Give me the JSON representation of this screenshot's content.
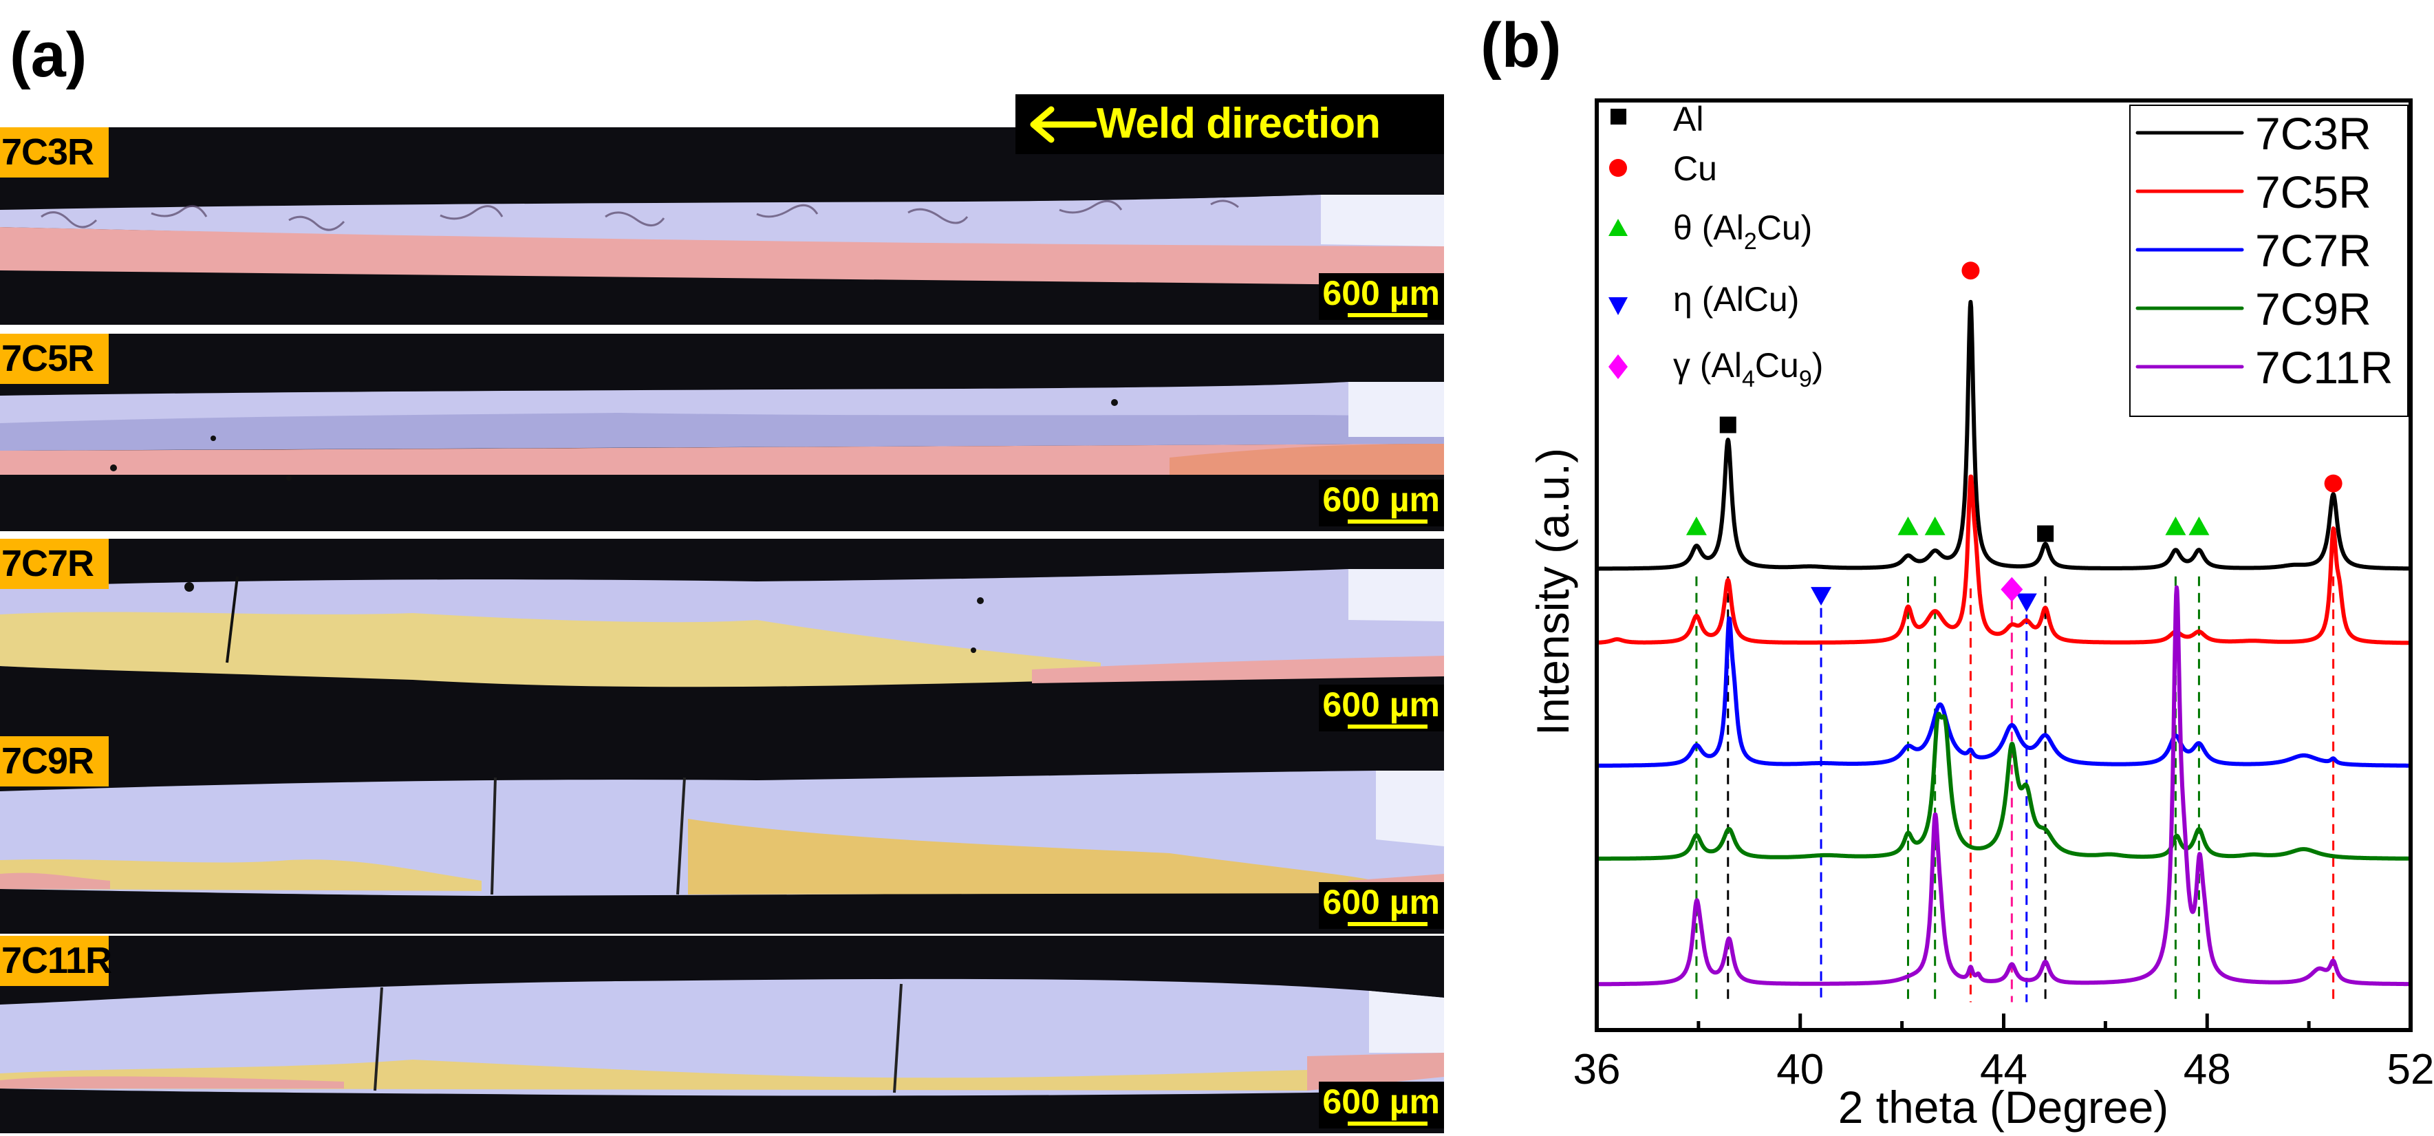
{
  "figure": {
    "panel_a_label": "(a)",
    "panel_b_label": "(b)"
  },
  "micrographs": {
    "weld_direction_label": "Weld direction",
    "weld_arrow_icon": "arrow-left-icon",
    "samples": [
      {
        "label": "7C3R",
        "scale_bar": "600 µm",
        "layers": "Al over Cu"
      },
      {
        "label": "7C5R",
        "scale_bar": "600 µm",
        "layers": "Al over Cu"
      },
      {
        "label": "7C7R",
        "scale_bar": "600 µm",
        "layers": "Al over intermetallic"
      },
      {
        "label": "7C9R",
        "scale_bar": "600 µm",
        "layers": "Al with intermetallic"
      },
      {
        "label": "7C11R",
        "scale_bar": "600 µm",
        "layers": "Al with intermetallic"
      }
    ],
    "colors": {
      "tag": "#ffb400",
      "scale_text": "#ffff00",
      "al": "#c8c8ee",
      "cu": "#e8a0a0",
      "imc": "#e8d07a",
      "background": "#0d0d12"
    }
  },
  "chart_data": {
    "type": "line",
    "title": "",
    "xlabel": "2 theta (Degree)",
    "ylabel": "Intensity (a.u.)",
    "xlim": [
      36,
      52
    ],
    "ylim": [
      0,
      100
    ],
    "x_ticks": [
      36,
      40,
      44,
      48,
      52
    ],
    "x_minor_ticks": [
      38,
      42,
      46,
      50
    ],
    "y_ticks_shown": false,
    "grid": false,
    "legend_position": "top-right",
    "series": [
      {
        "name": "7C3R",
        "color": "#000000",
        "baseline": 49.6,
        "peaks": [
          [
            37.96,
            2.2,
            0.12
          ],
          [
            38.58,
            13.8,
            0.09
          ],
          [
            42.12,
            1.2,
            0.14
          ],
          [
            42.65,
            1.6,
            0.16
          ],
          [
            43.35,
            28.6,
            0.07
          ],
          [
            44.82,
            2.6,
            0.1
          ],
          [
            47.38,
            1.9,
            0.12
          ],
          [
            47.84,
            1.9,
            0.12
          ],
          [
            50.48,
            8.0,
            0.1
          ],
          [
            49.7,
            0.3,
            0.3
          ],
          [
            40.2,
            0.2,
            0.4
          ]
        ]
      },
      {
        "name": "7C5R",
        "color": "#ff0000",
        "baseline": 41.6,
        "peaks": [
          [
            36.4,
            0.4,
            0.15
          ],
          [
            37.96,
            2.8,
            0.12
          ],
          [
            38.58,
            6.7,
            0.09
          ],
          [
            42.12,
            3.4,
            0.1
          ],
          [
            42.65,
            3.1,
            0.22
          ],
          [
            43.35,
            15.2,
            0.07
          ],
          [
            43.45,
            6.0,
            0.08
          ],
          [
            44.16,
            1.3,
            0.15
          ],
          [
            44.45,
            1.8,
            0.15
          ],
          [
            44.82,
            3.4,
            0.1
          ],
          [
            47.38,
            1.1,
            0.15
          ],
          [
            47.84,
            1.1,
            0.15
          ],
          [
            50.48,
            11.1,
            0.07
          ],
          [
            50.6,
            4.0,
            0.08
          ],
          [
            48.9,
            0.2,
            0.4
          ]
        ]
      },
      {
        "name": "7C7R",
        "color": "#0000ff",
        "baseline": 28.4,
        "peaks": [
          [
            37.96,
            2.0,
            0.14
          ],
          [
            38.6,
            13.8,
            0.07
          ],
          [
            38.7,
            5.0,
            0.08
          ],
          [
            42.12,
            1.5,
            0.16
          ],
          [
            42.75,
            6.4,
            0.2
          ],
          [
            43.35,
            0.8,
            0.06
          ],
          [
            44.16,
            4.0,
            0.2
          ],
          [
            44.82,
            2.9,
            0.2
          ],
          [
            47.38,
            3.0,
            0.15
          ],
          [
            47.84,
            2.1,
            0.15
          ],
          [
            49.9,
            1.1,
            0.35
          ],
          [
            50.48,
            0.5,
            0.06
          ],
          [
            40.4,
            0.2,
            0.5
          ]
        ]
      },
      {
        "name": "7C9R",
        "color": "#007800",
        "baseline": 18.4,
        "peaks": [
          [
            37.96,
            2.4,
            0.12
          ],
          [
            38.6,
            3.1,
            0.14
          ],
          [
            42.12,
            2.1,
            0.1
          ],
          [
            42.7,
            10.5,
            0.1
          ],
          [
            42.85,
            11.5,
            0.12
          ],
          [
            44.16,
            11.0,
            0.13
          ],
          [
            44.45,
            5.5,
            0.14
          ],
          [
            44.82,
            2.0,
            0.2
          ],
          [
            47.4,
            2.2,
            0.1
          ],
          [
            47.84,
            3.0,
            0.12
          ],
          [
            49.9,
            1.0,
            0.35
          ],
          [
            48.9,
            0.3,
            0.3
          ],
          [
            46.1,
            0.3,
            0.3
          ],
          [
            40.5,
            0.3,
            0.5
          ]
        ]
      },
      {
        "name": "7C11R",
        "color": "#9900cc",
        "baseline": 4.9,
        "peaks": [
          [
            37.96,
            7.5,
            0.09
          ],
          [
            38.05,
            2.5,
            0.1
          ],
          [
            38.6,
            4.7,
            0.1
          ],
          [
            42.65,
            15.6,
            0.08
          ],
          [
            42.75,
            5.0,
            0.1
          ],
          [
            43.35,
            1.4,
            0.05
          ],
          [
            43.5,
            0.7,
            0.05
          ],
          [
            44.16,
            2.0,
            0.1
          ],
          [
            44.82,
            2.3,
            0.1
          ],
          [
            47.4,
            39.8,
            0.08
          ],
          [
            47.55,
            8.0,
            0.1
          ],
          [
            47.85,
            10.0,
            0.08
          ],
          [
            47.95,
            4.0,
            0.1
          ],
          [
            50.2,
            1.5,
            0.2
          ],
          [
            50.48,
            2.0,
            0.08
          ],
          [
            42.2,
            0.4,
            0.3
          ]
        ]
      }
    ],
    "phase_legend": [
      {
        "name": "Al",
        "marker": "square",
        "color": "#000000"
      },
      {
        "name": "Cu",
        "marker": "circle",
        "color": "#ff0000"
      },
      {
        "name": "θ (Al",
        "sub1": "2",
        "name_tail": "Cu)",
        "marker": "triangle-up",
        "color": "#00d000"
      },
      {
        "name": "η (AlCu)",
        "marker": "triangle-down",
        "color": "#0000ff"
      },
      {
        "name": "γ (Al",
        "sub1": "4",
        "mid": "Cu",
        "sub2": "9",
        "name_tail": ")",
        "marker": "diamond",
        "color": "#ff00ff"
      }
    ],
    "phase_markers": [
      {
        "phase": "Al",
        "x": 38.58,
        "y": 65.1
      },
      {
        "phase": "Al",
        "x": 44.82,
        "y": 53.4
      },
      {
        "phase": "Cu",
        "x": 43.35,
        "y": 81.7
      },
      {
        "phase": "Cu",
        "x": 50.48,
        "y": 58.8
      },
      {
        "phase": "θ",
        "x": 37.96,
        "y": 54.2
      },
      {
        "phase": "θ",
        "x": 42.12,
        "y": 54.2
      },
      {
        "phase": "θ",
        "x": 42.65,
        "y": 54.2
      },
      {
        "phase": "θ",
        "x": 47.38,
        "y": 54.2
      },
      {
        "phase": "θ",
        "x": 47.84,
        "y": 54.2
      },
      {
        "phase": "η",
        "x": 40.41,
        "y": 46.7
      },
      {
        "phase": "η",
        "x": 44.45,
        "y": 46.0
      },
      {
        "phase": "γ",
        "x": 44.16,
        "y": 47.4
      }
    ],
    "reference_lines": [
      {
        "phase": "Al",
        "x": 38.58,
        "color": "#000000",
        "y_top": 48.8
      },
      {
        "phase": "Al",
        "x": 44.82,
        "color": "#000000",
        "y_top": 48.8
      },
      {
        "phase": "Cu",
        "x": 43.35,
        "color": "#ff0000",
        "y_top": 47.5
      },
      {
        "phase": "Cu",
        "x": 50.48,
        "color": "#ff0000",
        "y_top": 48.8
      },
      {
        "phase": "θ",
        "x": 37.96,
        "color": "#007800",
        "y_top": 48.8
      },
      {
        "phase": "θ",
        "x": 42.12,
        "color": "#007800",
        "y_top": 48.8
      },
      {
        "phase": "θ",
        "x": 42.65,
        "color": "#007800",
        "y_top": 48.8
      },
      {
        "phase": "θ",
        "x": 47.38,
        "color": "#007800",
        "y_top": 48.8
      },
      {
        "phase": "θ",
        "x": 47.84,
        "color": "#007800",
        "y_top": 48.8
      },
      {
        "phase": "η",
        "x": 40.41,
        "color": "#0000ff",
        "y_top": 45.4
      },
      {
        "phase": "η",
        "x": 44.45,
        "color": "#0000ff",
        "y_top": 44.7
      },
      {
        "phase": "γ",
        "x": 44.16,
        "color": "#ff1493",
        "y_top": 46.3
      }
    ],
    "reference_line_bottom": 3.0
  }
}
